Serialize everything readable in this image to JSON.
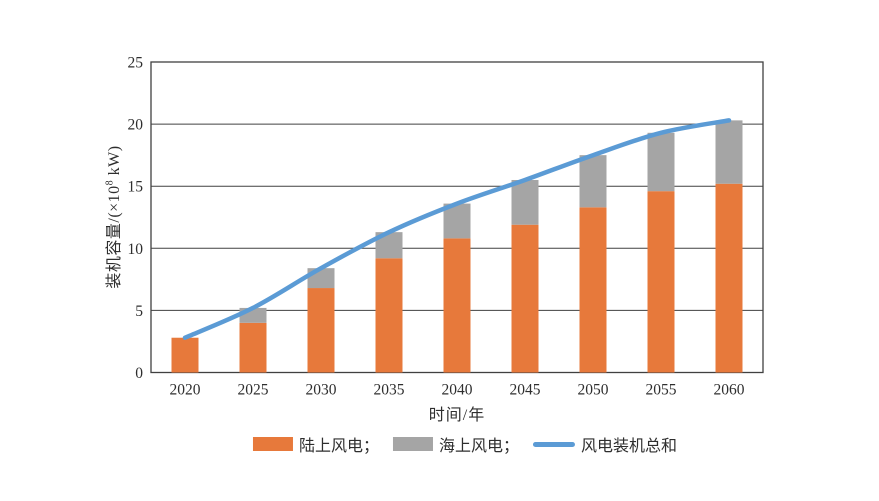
{
  "page": {
    "background": "#ffffff"
  },
  "axis": {
    "x_label": "时间/年",
    "y_label": "装机容量/(×10⁸ kW)",
    "y_label_prefix": "装机容量/(×10",
    "y_label_sup": "8",
    "y_label_suffix": " kW)",
    "text_color": "#2e2e2e",
    "grid_color": "#404040"
  },
  "legend": {
    "items": [
      {
        "name": "onshore",
        "label": "陆上风电；",
        "swatch": "bar",
        "color": "#E7793B"
      },
      {
        "name": "offshore",
        "label": "海上风电；",
        "swatch": "bar",
        "color": "#A5A5A5"
      },
      {
        "name": "total",
        "label": "风电装机总和",
        "swatch": "line",
        "color": "#5B9BD5"
      }
    ]
  },
  "chart_data": {
    "type": "bar",
    "subtype": "stacked-bars-with-line-overlay",
    "title": "",
    "xlabel": "时间/年",
    "ylabel": "装机容量/(×10⁸ kW)",
    "categories": [
      "2020",
      "2025",
      "2030",
      "2035",
      "2040",
      "2045",
      "2050",
      "2055",
      "2060"
    ],
    "series": [
      {
        "name": "陆上风电",
        "kind": "bar",
        "color": "#E7793B",
        "values": [
          2.8,
          4.0,
          6.8,
          9.2,
          10.8,
          11.9,
          13.3,
          14.6,
          15.2
        ]
      },
      {
        "name": "海上风电",
        "kind": "bar",
        "color": "#A5A5A5",
        "values": [
          0,
          1.2,
          1.6,
          2.1,
          2.8,
          3.6,
          4.2,
          4.7,
          5.1
        ]
      },
      {
        "name": "风电装机总和",
        "kind": "line",
        "color": "#5B9BD5",
        "values": [
          2.8,
          5.2,
          8.4,
          11.3,
          13.6,
          15.5,
          17.5,
          19.3,
          20.3
        ]
      }
    ],
    "ylim": [
      0,
      25
    ],
    "yticks": [
      0,
      5,
      10,
      15,
      20,
      25
    ],
    "grid": true,
    "legend_position": "bottom"
  }
}
